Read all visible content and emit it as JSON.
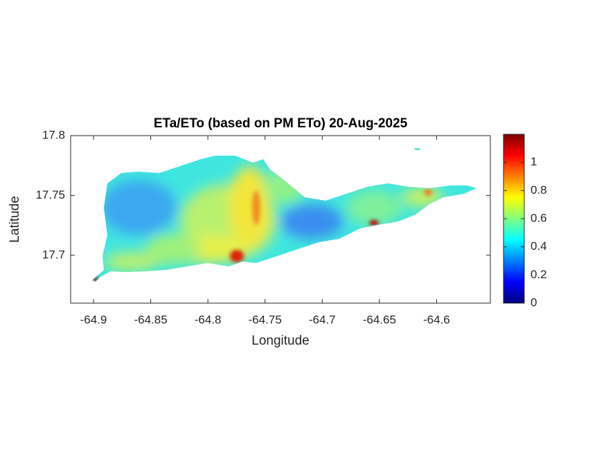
{
  "chart_data": {
    "type": "heatmap",
    "title": "ETa/ETo (based on PM ETo) 20-Aug-2025",
    "x_label": "Longitude",
    "y_label": "Latitude",
    "xlim": [
      -64.92,
      -64.553
    ],
    "xticks": [
      -64.9,
      -64.85,
      -64.8,
      -64.75,
      -64.7,
      -64.65,
      -64.6
    ],
    "ylim": [
      17.66,
      17.8
    ],
    "yticks": [
      17.7,
      17.75,
      17.8
    ],
    "colormap": "jet",
    "clim": [
      0,
      1.2
    ],
    "cticks": [
      0,
      0.2,
      0.4,
      0.6,
      0.8,
      1
    ]
  }
}
